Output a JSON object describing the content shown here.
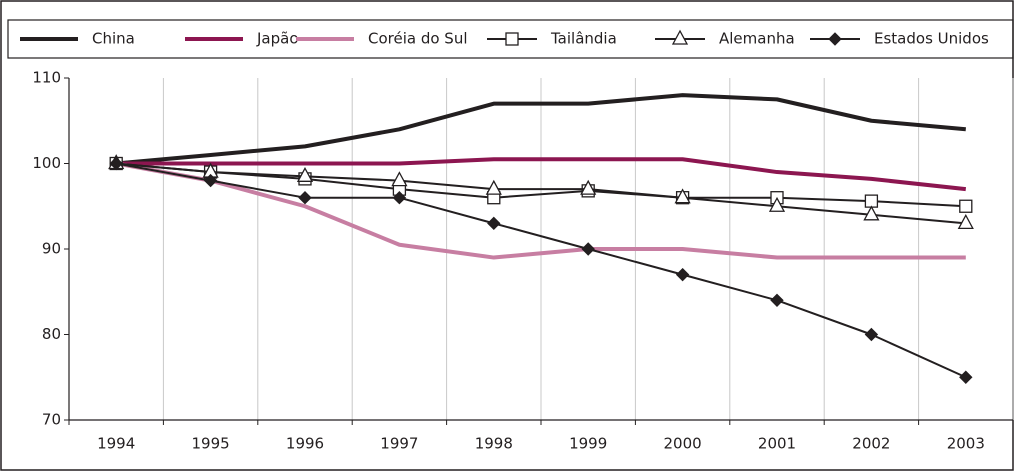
{
  "chart_data": {
    "type": "line",
    "categories": [
      "1994",
      "1995",
      "1996",
      "1997",
      "1998",
      "1999",
      "2000",
      "2001",
      "2002",
      "2003"
    ],
    "series": [
      {
        "name": "China",
        "color": "#231f20",
        "marker": "none",
        "values": [
          100,
          101,
          102,
          104,
          107,
          107,
          108,
          107.5,
          105,
          104
        ]
      },
      {
        "name": "Japão",
        "color": "#8c1650",
        "marker": "none",
        "values": [
          100,
          100,
          100,
          100,
          100.5,
          100.5,
          100.5,
          99,
          98.2,
          97
        ]
      },
      {
        "name": "Coréia do Sul",
        "color": "#c77ea2",
        "marker": "none",
        "values": [
          100,
          98,
          95,
          90.5,
          89,
          90,
          90,
          89,
          89,
          89
        ]
      },
      {
        "name": "Tailândia",
        "color": "#231f20",
        "marker": "square",
        "values": [
          100,
          99,
          98.2,
          97,
          96,
          96.8,
          96,
          96,
          95.6,
          95
        ]
      },
      {
        "name": "Alemanha",
        "color": "#231f20",
        "marker": "triangle",
        "values": [
          100,
          99,
          98.5,
          98,
          97,
          97,
          96,
          95,
          94,
          93
        ]
      },
      {
        "name": "Estados Unidos",
        "color": "#231f20",
        "marker": "diamond",
        "values": [
          100,
          98,
          96,
          96,
          93,
          90,
          87,
          84,
          80,
          75
        ]
      }
    ],
    "ylim": [
      70,
      110
    ],
    "yticks": [
      70,
      80,
      90,
      100,
      110
    ],
    "grid": true
  }
}
